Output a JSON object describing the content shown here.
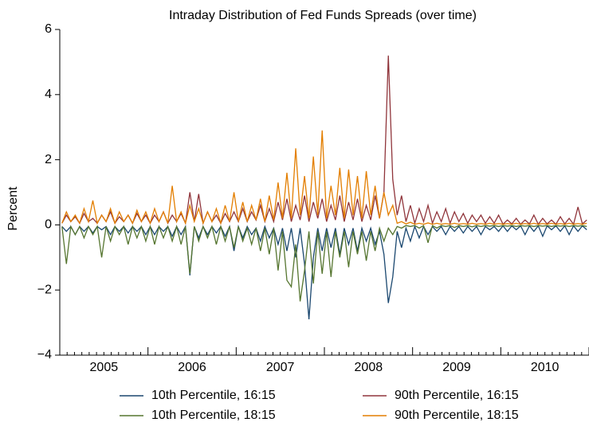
{
  "chart_data": {
    "type": "line",
    "title": "Intraday Distribution of Fed Funds Spreads (over time)",
    "y_label": "Percent",
    "xlim": [
      2005,
      2011
    ],
    "xticks": [
      {
        "value": 2005.5,
        "label": "2005"
      },
      {
        "value": 2006.5,
        "label": "2006"
      },
      {
        "value": 2007.5,
        "label": "2007"
      },
      {
        "value": 2008.5,
        "label": "2008"
      },
      {
        "value": 2009.5,
        "label": "2009"
      },
      {
        "value": 2010.5,
        "label": "2010"
      }
    ],
    "ylim": [
      -4,
      6
    ],
    "yticks": [
      {
        "value": -4,
        "label": "−4"
      },
      {
        "value": -2,
        "label": "−2"
      },
      0,
      2,
      4,
      6
    ],
    "grid": false,
    "x": [
      2005.025,
      2005.075,
      2005.125,
      2005.175,
      2005.225,
      2005.275,
      2005.325,
      2005.375,
      2005.425,
      2005.475,
      2005.525,
      2005.575,
      2005.625,
      2005.675,
      2005.725,
      2005.775,
      2005.825,
      2005.875,
      2005.925,
      2005.975,
      2006.025,
      2006.075,
      2006.125,
      2006.175,
      2006.225,
      2006.275,
      2006.325,
      2006.375,
      2006.425,
      2006.475,
      2006.525,
      2006.575,
      2006.625,
      2006.675,
      2006.725,
      2006.775,
      2006.825,
      2006.875,
      2006.925,
      2006.975,
      2007.025,
      2007.075,
      2007.125,
      2007.175,
      2007.225,
      2007.275,
      2007.325,
      2007.375,
      2007.425,
      2007.475,
      2007.525,
      2007.575,
      2007.625,
      2007.675,
      2007.725,
      2007.775,
      2007.825,
      2007.875,
      2007.925,
      2007.975,
      2008.025,
      2008.075,
      2008.125,
      2008.175,
      2008.225,
      2008.275,
      2008.325,
      2008.375,
      2008.425,
      2008.475,
      2008.525,
      2008.575,
      2008.625,
      2008.675,
      2008.725,
      2008.775,
      2008.825,
      2008.875,
      2008.925,
      2008.975,
      2009.025,
      2009.075,
      2009.125,
      2009.175,
      2009.225,
      2009.275,
      2009.325,
      2009.375,
      2009.425,
      2009.475,
      2009.525,
      2009.575,
      2009.625,
      2009.675,
      2009.725,
      2009.775,
      2009.825,
      2009.875,
      2009.925,
      2009.975,
      2010.025,
      2010.075,
      2010.125,
      2010.175,
      2010.225,
      2010.275,
      2010.325,
      2010.375,
      2010.425,
      2010.475,
      2010.525,
      2010.575,
      2010.625,
      2010.675,
      2010.725,
      2010.775,
      2010.825,
      2010.875,
      2010.925,
      2010.975
    ],
    "series": [
      {
        "name": "10th Percentile, 16:15",
        "color": "#1a476f",
        "values": [
          -0.05,
          -0.2,
          -0.05,
          -0.3,
          -0.05,
          -0.2,
          -0.05,
          -0.25,
          -0.05,
          -0.15,
          -0.05,
          -0.3,
          -0.05,
          -0.2,
          -0.05,
          -0.25,
          -0.05,
          -0.2,
          -0.05,
          -0.3,
          -0.05,
          -0.3,
          -0.05,
          -0.2,
          -0.05,
          -0.35,
          -0.05,
          -0.3,
          -0.05,
          -1.55,
          -0.05,
          -0.4,
          -0.05,
          -0.3,
          -0.05,
          -0.25,
          -0.05,
          -0.35,
          -0.05,
          -0.8,
          -0.05,
          -0.4,
          -0.05,
          -0.3,
          -0.1,
          -0.5,
          -0.05,
          -0.4,
          -0.1,
          -0.6,
          -0.1,
          -0.8,
          -0.1,
          -1.0,
          -0.1,
          -1.2,
          -2.9,
          -1.0,
          -0.1,
          -0.8,
          -0.1,
          -0.7,
          -0.1,
          -0.9,
          -0.1,
          -0.6,
          -0.1,
          -0.8,
          -0.1,
          -0.5,
          -0.1,
          -0.6,
          -0.2,
          -0.9,
          -2.4,
          -1.6,
          -0.2,
          -0.7,
          -0.1,
          -0.5,
          -0.05,
          -0.4,
          -0.05,
          -0.3,
          -0.05,
          -0.2,
          -0.05,
          -0.3,
          -0.05,
          -0.2,
          -0.05,
          -0.25,
          -0.05,
          -0.2,
          -0.05,
          -0.3,
          -0.05,
          -0.15,
          -0.05,
          -0.2,
          -0.03,
          -0.2,
          -0.03,
          -0.15,
          -0.03,
          -0.3,
          -0.03,
          -0.2,
          -0.03,
          -0.35,
          -0.03,
          -0.15,
          -0.03,
          -0.2,
          -0.03,
          -0.3,
          -0.03,
          -0.2,
          -0.03,
          -0.15
        ]
      },
      {
        "name": "90th Percentile, 16:15",
        "color": "#90353b",
        "values": [
          0.05,
          0.3,
          0.1,
          0.25,
          0.05,
          0.35,
          0.1,
          0.2,
          0.05,
          0.3,
          0.1,
          0.4,
          0.05,
          0.25,
          0.1,
          0.3,
          0.05,
          0.35,
          0.1,
          0.3,
          0.05,
          0.3,
          0.1,
          0.4,
          0.05,
          0.3,
          0.1,
          0.35,
          0.05,
          1.0,
          0.1,
          0.95,
          0.05,
          0.4,
          0.1,
          0.3,
          0.05,
          0.35,
          0.1,
          0.4,
          0.1,
          0.5,
          0.1,
          0.4,
          0.15,
          0.6,
          0.1,
          0.5,
          0.1,
          0.7,
          0.15,
          0.8,
          0.1,
          0.6,
          0.15,
          0.9,
          0.1,
          0.7,
          0.2,
          0.8,
          0.1,
          0.6,
          0.15,
          0.9,
          0.1,
          0.7,
          0.15,
          0.8,
          0.1,
          0.6,
          0.15,
          0.9,
          0.2,
          1.0,
          5.2,
          1.4,
          0.3,
          0.9,
          0.1,
          0.6,
          0.05,
          0.5,
          0.1,
          0.6,
          0.05,
          0.4,
          0.1,
          0.5,
          0.05,
          0.4,
          0.1,
          0.35,
          0.05,
          0.3,
          0.1,
          0.3,
          0.05,
          0.25,
          0.05,
          0.3,
          0.02,
          0.15,
          0.03,
          0.2,
          0.02,
          0.15,
          0.03,
          0.3,
          0.02,
          0.2,
          0.03,
          0.15,
          0.02,
          0.25,
          0.03,
          0.2,
          0.02,
          0.55,
          0.03,
          0.15
        ]
      },
      {
        "name": "10th Percentile, 18:15",
        "color": "#55752f",
        "values": [
          -0.05,
          -1.2,
          -0.05,
          -0.3,
          -0.05,
          -0.4,
          -0.05,
          -0.3,
          -0.05,
          -1.0,
          -0.05,
          -0.5,
          -0.05,
          -0.3,
          -0.05,
          -0.6,
          -0.05,
          -0.4,
          -0.05,
          -0.5,
          -0.05,
          -0.6,
          -0.05,
          -0.4,
          -0.05,
          -0.5,
          -0.05,
          -0.6,
          -0.05,
          -1.5,
          -0.05,
          -0.5,
          -0.05,
          -0.4,
          -0.05,
          -0.6,
          -0.05,
          -0.5,
          -0.05,
          -0.7,
          -0.05,
          -0.5,
          -0.1,
          -0.6,
          -0.1,
          -0.8,
          -0.1,
          -0.9,
          -0.1,
          -1.4,
          -0.2,
          -1.7,
          -1.9,
          -0.6,
          -2.35,
          -1.4,
          -0.2,
          -1.8,
          -0.2,
          -1.5,
          -0.2,
          -1.6,
          -0.2,
          -1.0,
          -0.2,
          -1.3,
          -0.2,
          -0.9,
          -0.2,
          -1.1,
          -0.2,
          -0.8,
          -0.1,
          -0.5,
          -0.1,
          -0.3,
          -0.05,
          -0.1,
          -0.02,
          -0.05,
          -0.02,
          -0.1,
          -0.02,
          -0.55,
          -0.02,
          -0.1,
          -0.02,
          -0.05,
          -0.02,
          -0.08,
          -0.02,
          -0.05,
          -0.02,
          -0.06,
          -0.02,
          -0.05,
          -0.02,
          -0.04,
          -0.02,
          -0.05,
          -0.02,
          -0.04,
          -0.02,
          -0.05,
          -0.02,
          -0.04,
          -0.02,
          -0.05,
          -0.02,
          -0.04,
          -0.02,
          -0.05,
          -0.02,
          -0.04,
          -0.02,
          -0.05,
          -0.02,
          -0.04,
          -0.02,
          -0.05
        ]
      },
      {
        "name": "90th Percentile, 18:15",
        "color": "#e37e00",
        "values": [
          0.05,
          0.4,
          0.1,
          0.3,
          0.05,
          0.5,
          0.1,
          0.75,
          0.05,
          0.3,
          0.1,
          0.5,
          0.05,
          0.4,
          0.1,
          0.3,
          0.05,
          0.45,
          0.1,
          0.4,
          0.05,
          0.5,
          0.1,
          0.4,
          0.05,
          1.2,
          0.1,
          0.4,
          0.05,
          0.6,
          0.1,
          0.5,
          0.05,
          0.4,
          0.1,
          0.5,
          0.05,
          0.6,
          0.1,
          1.0,
          0.1,
          0.7,
          0.1,
          0.6,
          0.15,
          0.8,
          0.1,
          0.9,
          0.15,
          1.3,
          0.2,
          1.6,
          0.2,
          2.35,
          0.3,
          1.5,
          0.2,
          2.1,
          0.3,
          2.9,
          0.2,
          1.2,
          0.3,
          1.75,
          0.2,
          1.7,
          0.3,
          1.5,
          0.2,
          1.65,
          0.3,
          1.2,
          0.2,
          1.0,
          0.3,
          0.6,
          0.05,
          0.1,
          0.03,
          0.08,
          0.02,
          0.05,
          0.02,
          0.06,
          0.02,
          0.05,
          0.02,
          0.04,
          0.02,
          0.05,
          0.02,
          0.04,
          0.02,
          0.05,
          0.02,
          0.04,
          0.02,
          0.05,
          0.02,
          0.04,
          0.02,
          0.04,
          0.02,
          0.05,
          0.02,
          0.04,
          0.02,
          0.05,
          0.02,
          0.04,
          0.02,
          0.05,
          0.02,
          0.04,
          0.02,
          0.05,
          0.02,
          0.04,
          0.02,
          0.05
        ]
      }
    ]
  }
}
